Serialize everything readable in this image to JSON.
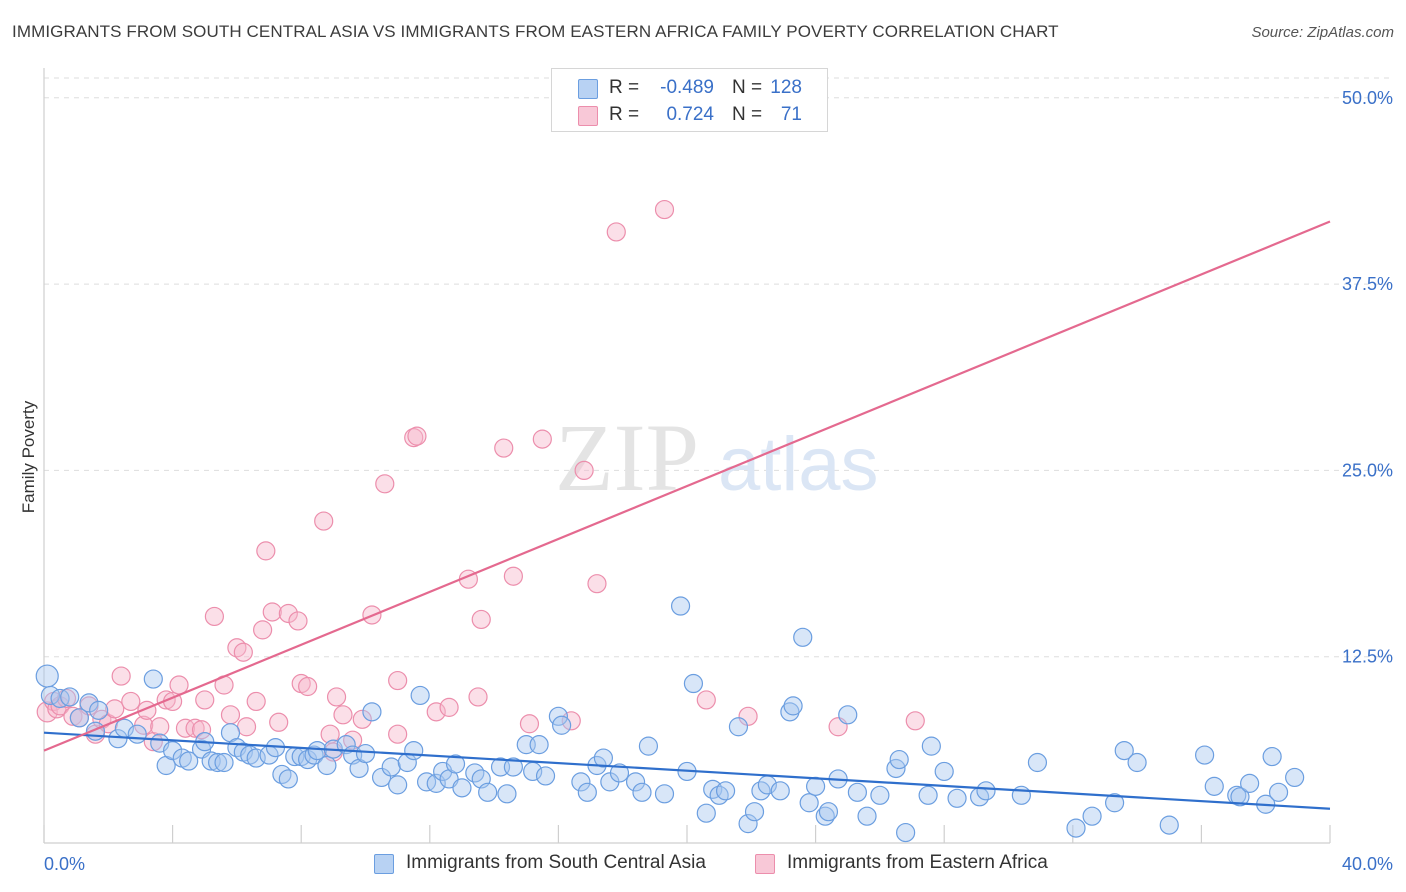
{
  "title": "IMMIGRANTS FROM SOUTH CENTRAL ASIA VS IMMIGRANTS FROM EASTERN AFRICA FAMILY POVERTY CORRELATION CHART",
  "source": "Source: ZipAtlas.com",
  "watermark": {
    "zip": "ZIP",
    "atlas": "atlas"
  },
  "colors": {
    "blue_fill": "#a9c8f0",
    "blue_stroke": "#6b9ee0",
    "blue_line": "#2f6fcc",
    "pink_fill": "#f6b9cc",
    "pink_stroke": "#ec8eac",
    "pink_line": "#e4698f",
    "axis_label": "#3a70c8"
  },
  "legend": {
    "rows": [
      {
        "r_label": "R =",
        "r_value": "-0.489",
        "n_label": "N =",
        "n_value": "128"
      },
      {
        "r_label": "R =",
        "r_value": "0.724",
        "n_label": "N =",
        "n_value": "71"
      }
    ]
  },
  "chart_data": {
    "type": "scatter",
    "title": "IMMIGRANTS FROM SOUTH CENTRAL ASIA VS IMMIGRANTS FROM EASTERN AFRICA FAMILY POVERTY CORRELATION CHART",
    "xlabel": "",
    "ylabel": "Family Poverty",
    "xlim": [
      0,
      40
    ],
    "ylim": [
      0,
      52
    ],
    "x_tick_labels": [
      "0.0%",
      "40.0%"
    ],
    "y_ticks": [
      12.5,
      25.0,
      37.5,
      50.0
    ],
    "y_tick_labels": [
      "12.5%",
      "25.0%",
      "37.5%",
      "50.0%"
    ],
    "grid": true,
    "legend_position": "top-center",
    "series": [
      {
        "name": "Immigrants from South Central Asia",
        "color": "#a9c8f0",
        "trend": {
          "x": [
            0,
            40
          ],
          "y": [
            7.4,
            2.3
          ]
        },
        "points": [
          [
            0.1,
            11.2
          ],
          [
            0.2,
            9.9
          ],
          [
            0.5,
            9.7
          ],
          [
            0.8,
            9.8
          ],
          [
            1.4,
            9.4
          ],
          [
            1.1,
            8.4
          ],
          [
            1.7,
            8.9
          ],
          [
            1.6,
            7.5
          ],
          [
            2.3,
            7.0
          ],
          [
            2.5,
            7.7
          ],
          [
            3.4,
            11.0
          ],
          [
            2.9,
            7.3
          ],
          [
            3.6,
            6.7
          ],
          [
            3.8,
            5.2
          ],
          [
            4.0,
            6.2
          ],
          [
            4.3,
            5.7
          ],
          [
            4.5,
            5.5
          ],
          [
            4.9,
            6.3
          ],
          [
            5.0,
            6.8
          ],
          [
            5.2,
            5.5
          ],
          [
            5.4,
            5.4
          ],
          [
            5.6,
            5.4
          ],
          [
            5.8,
            7.4
          ],
          [
            6.0,
            6.4
          ],
          [
            6.2,
            6.1
          ],
          [
            6.4,
            5.9
          ],
          [
            6.6,
            5.7
          ],
          [
            7.0,
            5.9
          ],
          [
            7.2,
            6.4
          ],
          [
            7.4,
            4.6
          ],
          [
            7.6,
            4.3
          ],
          [
            7.8,
            5.8
          ],
          [
            8.0,
            5.8
          ],
          [
            8.2,
            5.6
          ],
          [
            8.4,
            5.9
          ],
          [
            8.5,
            6.2
          ],
          [
            8.8,
            5.2
          ],
          [
            9.0,
            6.3
          ],
          [
            9.4,
            6.6
          ],
          [
            9.6,
            5.9
          ],
          [
            9.8,
            5.0
          ],
          [
            10.0,
            6.0
          ],
          [
            10.2,
            8.8
          ],
          [
            10.5,
            4.4
          ],
          [
            10.8,
            5.1
          ],
          [
            11.0,
            3.9
          ],
          [
            11.3,
            5.4
          ],
          [
            11.5,
            6.2
          ],
          [
            11.7,
            9.9
          ],
          [
            11.9,
            4.1
          ],
          [
            12.2,
            4.0
          ],
          [
            12.4,
            4.8
          ],
          [
            12.6,
            4.3
          ],
          [
            12.8,
            5.3
          ],
          [
            13.0,
            3.7
          ],
          [
            13.4,
            4.7
          ],
          [
            13.6,
            4.3
          ],
          [
            13.8,
            3.4
          ],
          [
            14.2,
            5.1
          ],
          [
            14.4,
            3.3
          ],
          [
            14.6,
            5.1
          ],
          [
            15.0,
            6.6
          ],
          [
            15.2,
            4.8
          ],
          [
            15.4,
            6.6
          ],
          [
            15.6,
            4.5
          ],
          [
            16.0,
            8.5
          ],
          [
            16.1,
            7.9
          ],
          [
            16.7,
            4.1
          ],
          [
            16.9,
            3.4
          ],
          [
            17.2,
            5.2
          ],
          [
            17.4,
            5.7
          ],
          [
            17.6,
            4.1
          ],
          [
            17.9,
            4.7
          ],
          [
            18.4,
            4.1
          ],
          [
            18.6,
            3.4
          ],
          [
            18.8,
            6.5
          ],
          [
            19.3,
            3.3
          ],
          [
            19.8,
            15.9
          ],
          [
            20.0,
            4.8
          ],
          [
            20.2,
            10.7
          ],
          [
            20.6,
            2.0
          ],
          [
            20.8,
            3.6
          ],
          [
            21.0,
            3.2
          ],
          [
            21.2,
            3.5
          ],
          [
            21.6,
            7.8
          ],
          [
            21.9,
            1.3
          ],
          [
            22.1,
            2.1
          ],
          [
            22.3,
            3.5
          ],
          [
            22.5,
            3.9
          ],
          [
            22.9,
            3.5
          ],
          [
            23.2,
            8.8
          ],
          [
            23.3,
            9.2
          ],
          [
            23.6,
            13.8
          ],
          [
            23.8,
            2.7
          ],
          [
            24.0,
            3.8
          ],
          [
            24.3,
            1.8
          ],
          [
            24.4,
            2.1
          ],
          [
            24.7,
            4.3
          ],
          [
            25.0,
            8.6
          ],
          [
            25.3,
            3.4
          ],
          [
            25.6,
            1.8
          ],
          [
            26.0,
            3.2
          ],
          [
            26.5,
            5.0
          ],
          [
            26.6,
            5.6
          ],
          [
            26.8,
            0.7
          ],
          [
            27.5,
            3.2
          ],
          [
            27.6,
            6.5
          ],
          [
            28.0,
            4.8
          ],
          [
            28.4,
            3.0
          ],
          [
            29.1,
            3.1
          ],
          [
            29.3,
            3.5
          ],
          [
            30.4,
            3.2
          ],
          [
            30.9,
            5.4
          ],
          [
            32.1,
            1.0
          ],
          [
            32.6,
            1.8
          ],
          [
            33.3,
            2.7
          ],
          [
            33.6,
            6.2
          ],
          [
            34.0,
            5.4
          ],
          [
            35.0,
            1.2
          ],
          [
            36.1,
            5.9
          ],
          [
            36.4,
            3.8
          ],
          [
            37.1,
            3.2
          ],
          [
            37.2,
            3.1
          ],
          [
            37.5,
            4.0
          ],
          [
            38.0,
            2.6
          ],
          [
            38.2,
            5.8
          ],
          [
            38.4,
            3.4
          ],
          [
            38.9,
            4.4
          ]
        ]
      },
      {
        "name": "Immigrants from Eastern Africa",
        "color": "#f6b9cc",
        "trend": {
          "x": [
            0,
            40
          ],
          "y": [
            6.2,
            41.7
          ]
        },
        "points": [
          [
            0.1,
            8.8
          ],
          [
            0.3,
            9.5
          ],
          [
            0.4,
            9.0
          ],
          [
            0.5,
            9.2
          ],
          [
            0.7,
            9.7
          ],
          [
            0.9,
            8.5
          ],
          [
            1.1,
            8.4
          ],
          [
            1.4,
            9.2
          ],
          [
            1.6,
            7.3
          ],
          [
            1.8,
            8.3
          ],
          [
            2.0,
            8.0
          ],
          [
            2.2,
            9.0
          ],
          [
            2.4,
            11.2
          ],
          [
            2.7,
            9.5
          ],
          [
            3.1,
            7.9
          ],
          [
            3.2,
            8.9
          ],
          [
            3.4,
            6.8
          ],
          [
            3.6,
            7.8
          ],
          [
            3.8,
            9.6
          ],
          [
            4.0,
            9.5
          ],
          [
            4.2,
            10.6
          ],
          [
            4.4,
            7.7
          ],
          [
            4.7,
            7.7
          ],
          [
            4.9,
            7.6
          ],
          [
            5.0,
            9.6
          ],
          [
            5.3,
            15.2
          ],
          [
            5.6,
            10.6
          ],
          [
            5.8,
            8.6
          ],
          [
            6.0,
            13.1
          ],
          [
            6.2,
            12.8
          ],
          [
            6.3,
            7.8
          ],
          [
            6.6,
            9.5
          ],
          [
            6.8,
            14.3
          ],
          [
            6.9,
            19.6
          ],
          [
            7.1,
            15.5
          ],
          [
            7.3,
            8.1
          ],
          [
            7.6,
            15.4
          ],
          [
            7.9,
            14.9
          ],
          [
            8.0,
            10.7
          ],
          [
            8.2,
            10.5
          ],
          [
            8.7,
            21.6
          ],
          [
            8.9,
            7.3
          ],
          [
            9.0,
            6.1
          ],
          [
            9.1,
            9.8
          ],
          [
            9.3,
            8.6
          ],
          [
            9.6,
            6.9
          ],
          [
            9.9,
            8.3
          ],
          [
            10.2,
            15.3
          ],
          [
            10.6,
            24.1
          ],
          [
            11.0,
            10.9
          ],
          [
            11.0,
            7.3
          ],
          [
            11.5,
            27.2
          ],
          [
            11.6,
            27.3
          ],
          [
            12.2,
            8.8
          ],
          [
            12.6,
            9.1
          ],
          [
            13.2,
            17.7
          ],
          [
            13.5,
            9.8
          ],
          [
            13.6,
            15.0
          ],
          [
            14.3,
            26.5
          ],
          [
            14.6,
            17.9
          ],
          [
            15.1,
            8.0
          ],
          [
            15.5,
            27.1
          ],
          [
            16.4,
            8.2
          ],
          [
            16.8,
            25.0
          ],
          [
            17.2,
            17.4
          ],
          [
            17.8,
            41.0
          ],
          [
            19.3,
            42.5
          ],
          [
            20.6,
            9.6
          ],
          [
            21.9,
            8.5
          ],
          [
            24.7,
            7.8
          ],
          [
            27.1,
            8.2
          ]
        ]
      }
    ]
  },
  "x_axis": {
    "min_label": "0.0%",
    "max_label": "40.0%"
  },
  "y_axis_title": "Family Poverty",
  "bottom_legend": [
    {
      "label": "Immigrants from South Central Asia"
    },
    {
      "label": "Immigrants from Eastern Africa"
    }
  ]
}
